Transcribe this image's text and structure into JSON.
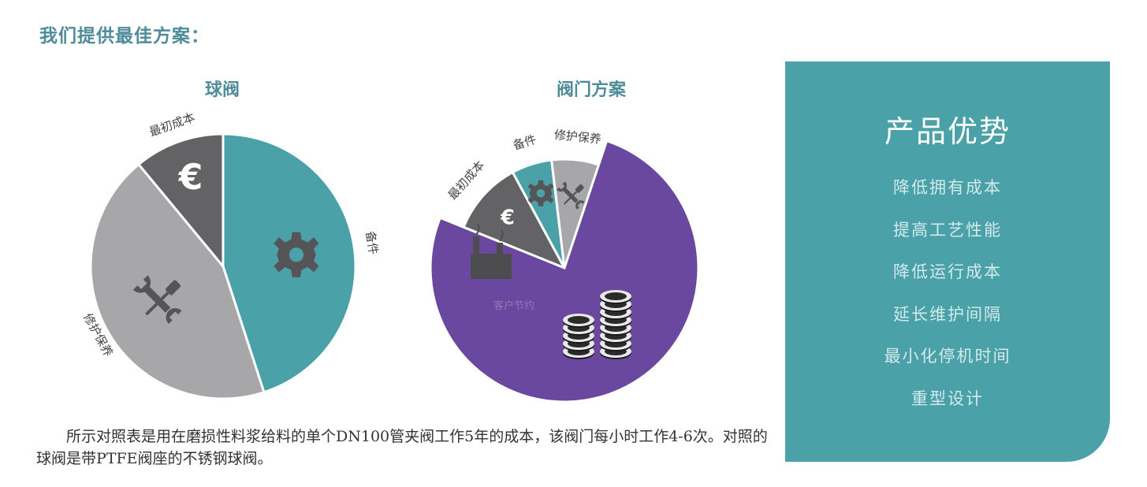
{
  "heading": "我们提供最佳方案：",
  "chart_data": [
    {
      "type": "pie",
      "title": "球阀",
      "slices": [
        {
          "label": "备件",
          "value": 45,
          "color": "#4aa2a8",
          "icon": "gear-icon"
        },
        {
          "label": "修护保养",
          "value": 44,
          "color": "#a7a7a9",
          "icon": "wrench-screwdriver-icon"
        },
        {
          "label": "最初成本",
          "value": 11,
          "color": "#636365",
          "icon": "euro-icon"
        }
      ]
    },
    {
      "type": "pie",
      "title": "阀门方案",
      "slices": [
        {
          "label": "最初成本",
          "value": 11,
          "color": "#636365",
          "icon": "euro-icon"
        },
        {
          "label": "备件",
          "value": 6,
          "color": "#4aa2a8",
          "icon": "gear-icon"
        },
        {
          "label": "修护保养",
          "value": 7,
          "color": "#a7a7a9",
          "icon": "wrench-screwdriver-icon"
        },
        {
          "label": "客户节约",
          "value": 76,
          "color": "#6a48a0",
          "icon": "factory-icon"
        }
      ]
    }
  ],
  "panel": {
    "title": "产品优势",
    "items": [
      "降低拥有成本",
      "提高工艺性能",
      "降低运行成本",
      "延长维护间隔",
      "最小化停机时间",
      "重型设计"
    ]
  },
  "caption": "所示对照表是用在磨损性料浆给料的单个DN100管夹阀工作5年的成本，该阀门每小时工作4-6次。对照的球阀是带PTFE阀座的不锈钢球阀。"
}
